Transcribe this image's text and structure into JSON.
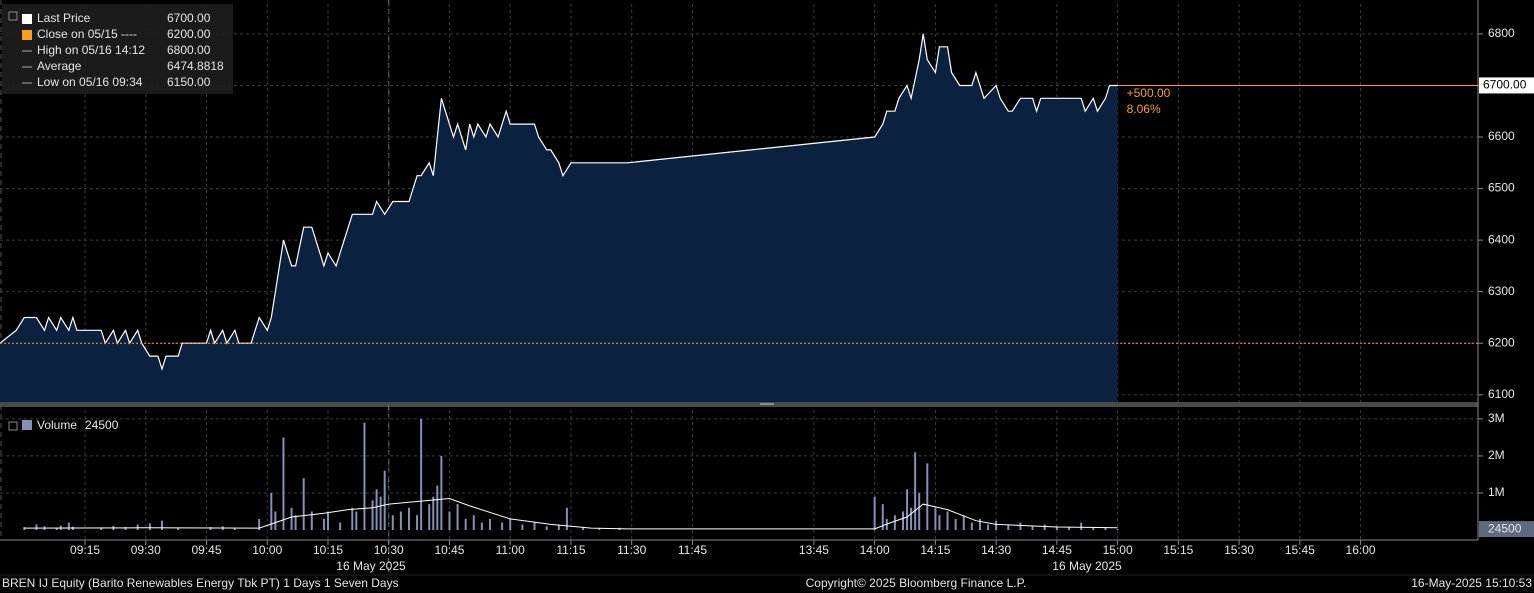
{
  "legend": {
    "entries": [
      {
        "label": "Last Price",
        "value": "6700.00",
        "color": "#ffffff"
      },
      {
        "label": "Close on 05/15 ----",
        "value": "6200.00",
        "color": "#ff9e1b"
      },
      {
        "label": "High on 05/16 14:12",
        "value": "6800.00"
      },
      {
        "label": "Average",
        "value": "6474.8818"
      },
      {
        "label": "Low on 05/16 09:34",
        "value": "6150.00"
      }
    ]
  },
  "x_axis": {
    "xlim": [
      "08:54",
      "16:29"
    ],
    "x_break": [
      "12:00",
      "13:30"
    ],
    "xticks": [
      "09:15",
      "09:30",
      "09:45",
      "10:00",
      "10:15",
      "10:30",
      "10:45",
      "11:00",
      "11:15",
      "11:30",
      "11:45",
      "13:45",
      "14:00",
      "14:15",
      "14:30",
      "14:45",
      "15:00",
      "15:15",
      "15:30",
      "15:45",
      "16:00"
    ],
    "date_labels": [
      "16 May 2025",
      "16 May 2025"
    ]
  },
  "chart_data": [
    {
      "type": "area",
      "grid": true,
      "x": [
        "08:54",
        "08:58",
        "09:00",
        "09:03",
        "09:05",
        "09:06",
        "09:08",
        "09:09",
        "09:11",
        "09:12",
        "09:13",
        "09:19",
        "09:20",
        "09:22",
        "09:23",
        "09:25",
        "09:26",
        "09:28",
        "09:29",
        "09:31",
        "09:33",
        "09:34",
        "09:35",
        "09:38",
        "09:39",
        "09:45",
        "09:46",
        "09:47",
        "09:49",
        "09:50",
        "09:52",
        "09:53",
        "09:56",
        "09:58",
        "10:00",
        "10:01",
        "10:02",
        "10:04",
        "10:06",
        "10:07",
        "10:09",
        "10:11",
        "10:14",
        "10:15",
        "10:17",
        "10:18",
        "10:19",
        "10:21",
        "10:22",
        "10:26",
        "10:27",
        "10:29",
        "10:31",
        "10:35",
        "10:37",
        "10:38",
        "10:40",
        "10:41",
        "10:42",
        "10:43",
        "10:44",
        "10:46",
        "10:47",
        "10:49",
        "10:50",
        "10:51",
        "10:52",
        "10:54",
        "10:55",
        "10:57",
        "10:58",
        "10:59",
        "11:00",
        "11:06",
        "11:07",
        "11:09",
        "11:10",
        "11:12",
        "11:13",
        "11:15",
        "11:29",
        "14:00",
        "14:02",
        "14:03",
        "14:05",
        "14:06",
        "14:08",
        "14:09",
        "14:11",
        "14:12",
        "14:13",
        "14:15",
        "14:16",
        "14:18",
        "14:19",
        "14:21",
        "14:24",
        "14:25",
        "14:27",
        "14:30",
        "14:31",
        "14:33",
        "14:34",
        "14:36",
        "14:39",
        "14:40",
        "14:41",
        "14:51",
        "14:52",
        "14:54",
        "14:55",
        "14:57",
        "14:58",
        "15:00"
      ],
      "series": [
        {
          "color": "#ffffff",
          "fill": "#0a2240",
          "values": [
            6200,
            6225,
            6250,
            6250,
            6225,
            6250,
            6225,
            6250,
            6225,
            6250,
            6225,
            6225,
            6200,
            6225,
            6200,
            6225,
            6200,
            6225,
            6200,
            6175,
            6175,
            6150,
            6175,
            6175,
            6200,
            6200,
            6225,
            6200,
            6225,
            6200,
            6225,
            6200,
            6200,
            6250,
            6225,
            6250,
            6300,
            6400,
            6350,
            6350,
            6425,
            6425,
            6350,
            6375,
            6350,
            6375,
            6400,
            6450,
            6450,
            6450,
            6475,
            6450,
            6475,
            6475,
            6525,
            6525,
            6550,
            6525,
            6600,
            6675,
            6650,
            6600,
            6625,
            6575,
            6625,
            6600,
            6625,
            6600,
            6625,
            6600,
            6625,
            6650,
            6625,
            6625,
            6600,
            6575,
            6575,
            6550,
            6525,
            6550,
            6550,
            6600,
            6625,
            6650,
            6650,
            6675,
            6700,
            6675,
            6750,
            6800,
            6750,
            6725,
            6775,
            6775,
            6725,
            6700,
            6700,
            6725,
            6675,
            6700,
            6675,
            6650,
            6650,
            6675,
            6675,
            6650,
            6675,
            6675,
            6650,
            6675,
            6650,
            6675,
            6700,
            6700
          ]
        }
      ],
      "ylim": [
        6086,
        6858
      ],
      "yticks": [
        6100,
        6200,
        6300,
        6400,
        6500,
        6600,
        6700,
        6800
      ],
      "reference_lines": [
        {
          "value": 6700,
          "label": "6700.00",
          "color": "#ff9e1b",
          "style": "solid"
        },
        {
          "value": 6200,
          "color": "#ff9e1b",
          "style": "dotted"
        }
      ],
      "annotations": [
        "+500.00",
        "8.06%"
      ]
    },
    {
      "type": "bar",
      "grid": true,
      "x": [
        "09:00",
        "09:03",
        "09:05",
        "09:08",
        "09:09",
        "09:11",
        "09:12",
        "09:19",
        "09:22",
        "09:25",
        "09:28",
        "09:31",
        "09:34",
        "09:38",
        "09:46",
        "09:49",
        "09:52",
        "09:58",
        "10:01",
        "10:02",
        "10:04",
        "10:06",
        "10:07",
        "10:09",
        "10:11",
        "10:14",
        "10:15",
        "10:18",
        "10:21",
        "10:22",
        "10:24",
        "10:26",
        "10:27",
        "10:28",
        "10:29",
        "10:31",
        "10:33",
        "10:35",
        "10:37",
        "10:38",
        "10:40",
        "10:41",
        "10:42",
        "10:43",
        "10:45",
        "10:47",
        "10:49",
        "10:51",
        "10:53",
        "10:55",
        "10:58",
        "11:00",
        "11:03",
        "11:06",
        "11:09",
        "11:12",
        "11:14",
        "11:18",
        "11:22",
        "11:27",
        "14:00",
        "14:02",
        "14:03",
        "14:05",
        "14:07",
        "14:08",
        "14:09",
        "14:10",
        "14:11",
        "14:13",
        "14:15",
        "14:16",
        "14:18",
        "14:20",
        "14:22",
        "14:24",
        "14:26",
        "14:28",
        "14:30",
        "14:33",
        "14:36",
        "14:39",
        "14:42",
        "14:45",
        "14:48",
        "14:51",
        "14:54",
        "14:57",
        "15:00"
      ],
      "series": [
        {
          "name": "Volume",
          "color": "#8291b4",
          "values": [
            80000,
            150000,
            100000,
            60000,
            120000,
            200000,
            90000,
            70000,
            110000,
            80000,
            150000,
            180000,
            250000,
            60000,
            80000,
            100000,
            60000,
            300000,
            1000000,
            500000,
            2500000,
            600000,
            400000,
            1400000,
            500000,
            300000,
            500000,
            200000,
            600000,
            500000,
            2900000,
            800000,
            1100000,
            900000,
            1600000,
            400000,
            500000,
            600000,
            400000,
            3000000,
            700000,
            900000,
            1200000,
            2000000,
            500000,
            700000,
            300000,
            400000,
            200000,
            300000,
            200000,
            300000,
            150000,
            200000,
            100000,
            150000,
            600000,
            80000,
            50000,
            60000,
            900000,
            700000,
            300000,
            400000,
            500000,
            1100000,
            600000,
            2100000,
            1000000,
            1800000,
            600000,
            400000,
            500000,
            300000,
            400000,
            200000,
            300000,
            150000,
            250000,
            150000,
            200000,
            100000,
            150000,
            100000,
            80000,
            200000,
            60000,
            80000,
            24500
          ]
        },
        {
          "type": "line",
          "color": "#ffffff",
          "x": [
            "09:00",
            "09:30",
            "09:58",
            "10:02",
            "10:06",
            "10:14",
            "10:20",
            "10:26",
            "10:30",
            "10:40",
            "10:45",
            "10:50",
            "11:00",
            "11:10",
            "11:20",
            "11:29",
            "14:00",
            "14:04",
            "14:08",
            "14:12",
            "14:18",
            "14:25",
            "14:30",
            "14:45",
            "15:00"
          ],
          "values": [
            50000,
            60000,
            50000,
            200000,
            350000,
            450000,
            550000,
            600000,
            700000,
            800000,
            850000,
            650000,
            300000,
            150000,
            50000,
            30000,
            30000,
            200000,
            350000,
            700000,
            550000,
            250000,
            150000,
            80000,
            60000
          ]
        }
      ],
      "ylim": [
        -270000,
        3240000
      ],
      "yticks": [
        {
          "value": 1000000,
          "label": "1M"
        },
        {
          "value": 2000000,
          "label": "2M"
        },
        {
          "value": 3000000,
          "label": "3M"
        }
      ]
    }
  ],
  "footer": {
    "left": "BREN IJ Equity (Barito Renewables Energy Tbk PT) 1 Days 1 Seven Days",
    "center": "Copyright© 2025 Bloomberg Finance L.P.",
    "right": "16-May-2025 15:10:53"
  }
}
